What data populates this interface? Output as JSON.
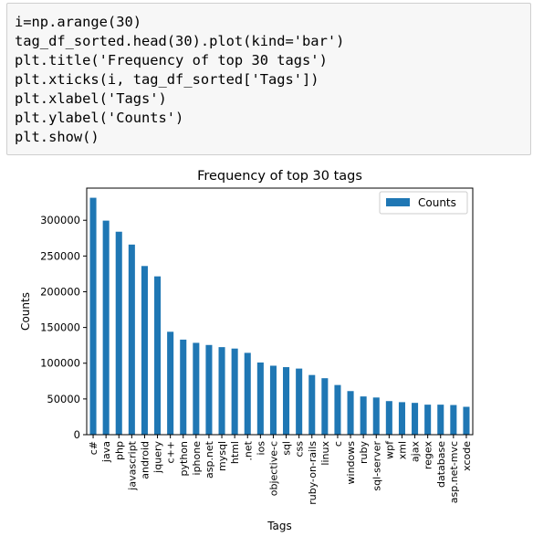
{
  "code_cell": {
    "lines": [
      "i=np.arange(30)",
      "tag_df_sorted.head(30).plot(kind='bar')",
      "plt.title('Frequency of top 30 tags')",
      "plt.xticks(i, tag_df_sorted['Tags'])",
      "plt.xlabel('Tags')",
      "plt.ylabel('Counts')",
      "plt.show()"
    ]
  },
  "chart_data": {
    "type": "bar",
    "title": "Frequency of top 30 tags",
    "xlabel": "Tags",
    "ylabel": "Counts",
    "ylim": [
      0,
      345000
    ],
    "yticks": [
      0,
      50000,
      100000,
      150000,
      200000,
      250000,
      300000
    ],
    "legend": {
      "position": "top-right",
      "label": "Counts"
    },
    "bar_color": "#1f77b4",
    "categories": [
      "c#",
      "java",
      "php",
      "javascript",
      "android",
      "jquery",
      "c++",
      "python",
      "iphone",
      "asp.net",
      "mysql",
      "html",
      ".net",
      "ios",
      "objective-c",
      "sql",
      "css",
      "ruby-on-rails",
      "linux",
      "c",
      "windows",
      "ruby",
      "sql-server",
      "wpf",
      "xml",
      "ajax",
      "regex",
      "database",
      "asp.net-mvc",
      "xcode"
    ],
    "series": [
      {
        "name": "Counts",
        "values": [
          331500,
          299500,
          284000,
          266000,
          236000,
          221500,
          144000,
          133000,
          128500,
          125500,
          122500,
          120500,
          114500,
          101000,
          96500,
          94500,
          92500,
          83500,
          79000,
          69500,
          61000,
          53500,
          52000,
          47000,
          45500,
          44500,
          42000,
          42000,
          41500,
          39000
        ]
      }
    ]
  }
}
